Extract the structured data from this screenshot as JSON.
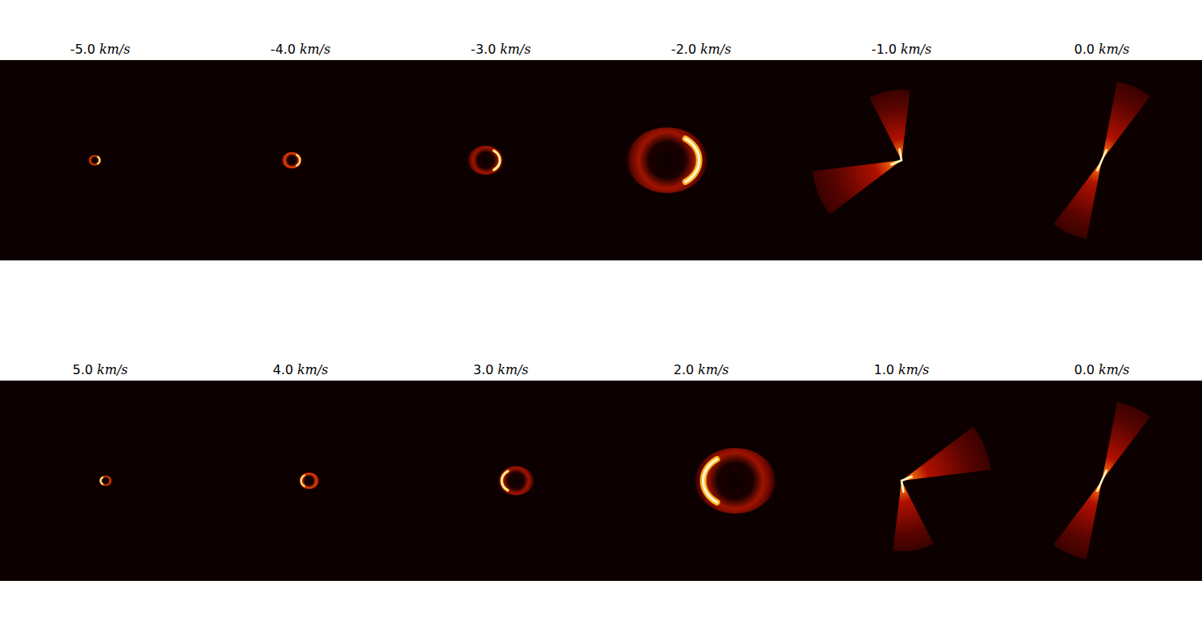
{
  "chart_data": {
    "type": "image_grid",
    "panels": [
      {
        "title": "-5.0 km/s",
        "velocity": -5
      },
      {
        "title": "-4.0 km/s",
        "velocity": -4
      },
      {
        "title": "-3.0 km/s",
        "velocity": -3
      },
      {
        "title": "-2.0 km/s",
        "velocity": -2
      },
      {
        "title": "-1.0 km/s",
        "velocity": -1
      },
      {
        "title": "0.0 km/s",
        "velocity": 0
      },
      {
        "title": "5.0 km/s",
        "velocity": 5
      },
      {
        "title": "4.0 km/s",
        "velocity": 4
      },
      {
        "title": "3.0 km/s",
        "velocity": 3
      },
      {
        "title": "2.0 km/s",
        "velocity": 2
      },
      {
        "title": "1.0 km/s",
        "velocity": 1
      },
      {
        "title": "0.0 km/s",
        "velocity": 0
      }
    ]
  }
}
